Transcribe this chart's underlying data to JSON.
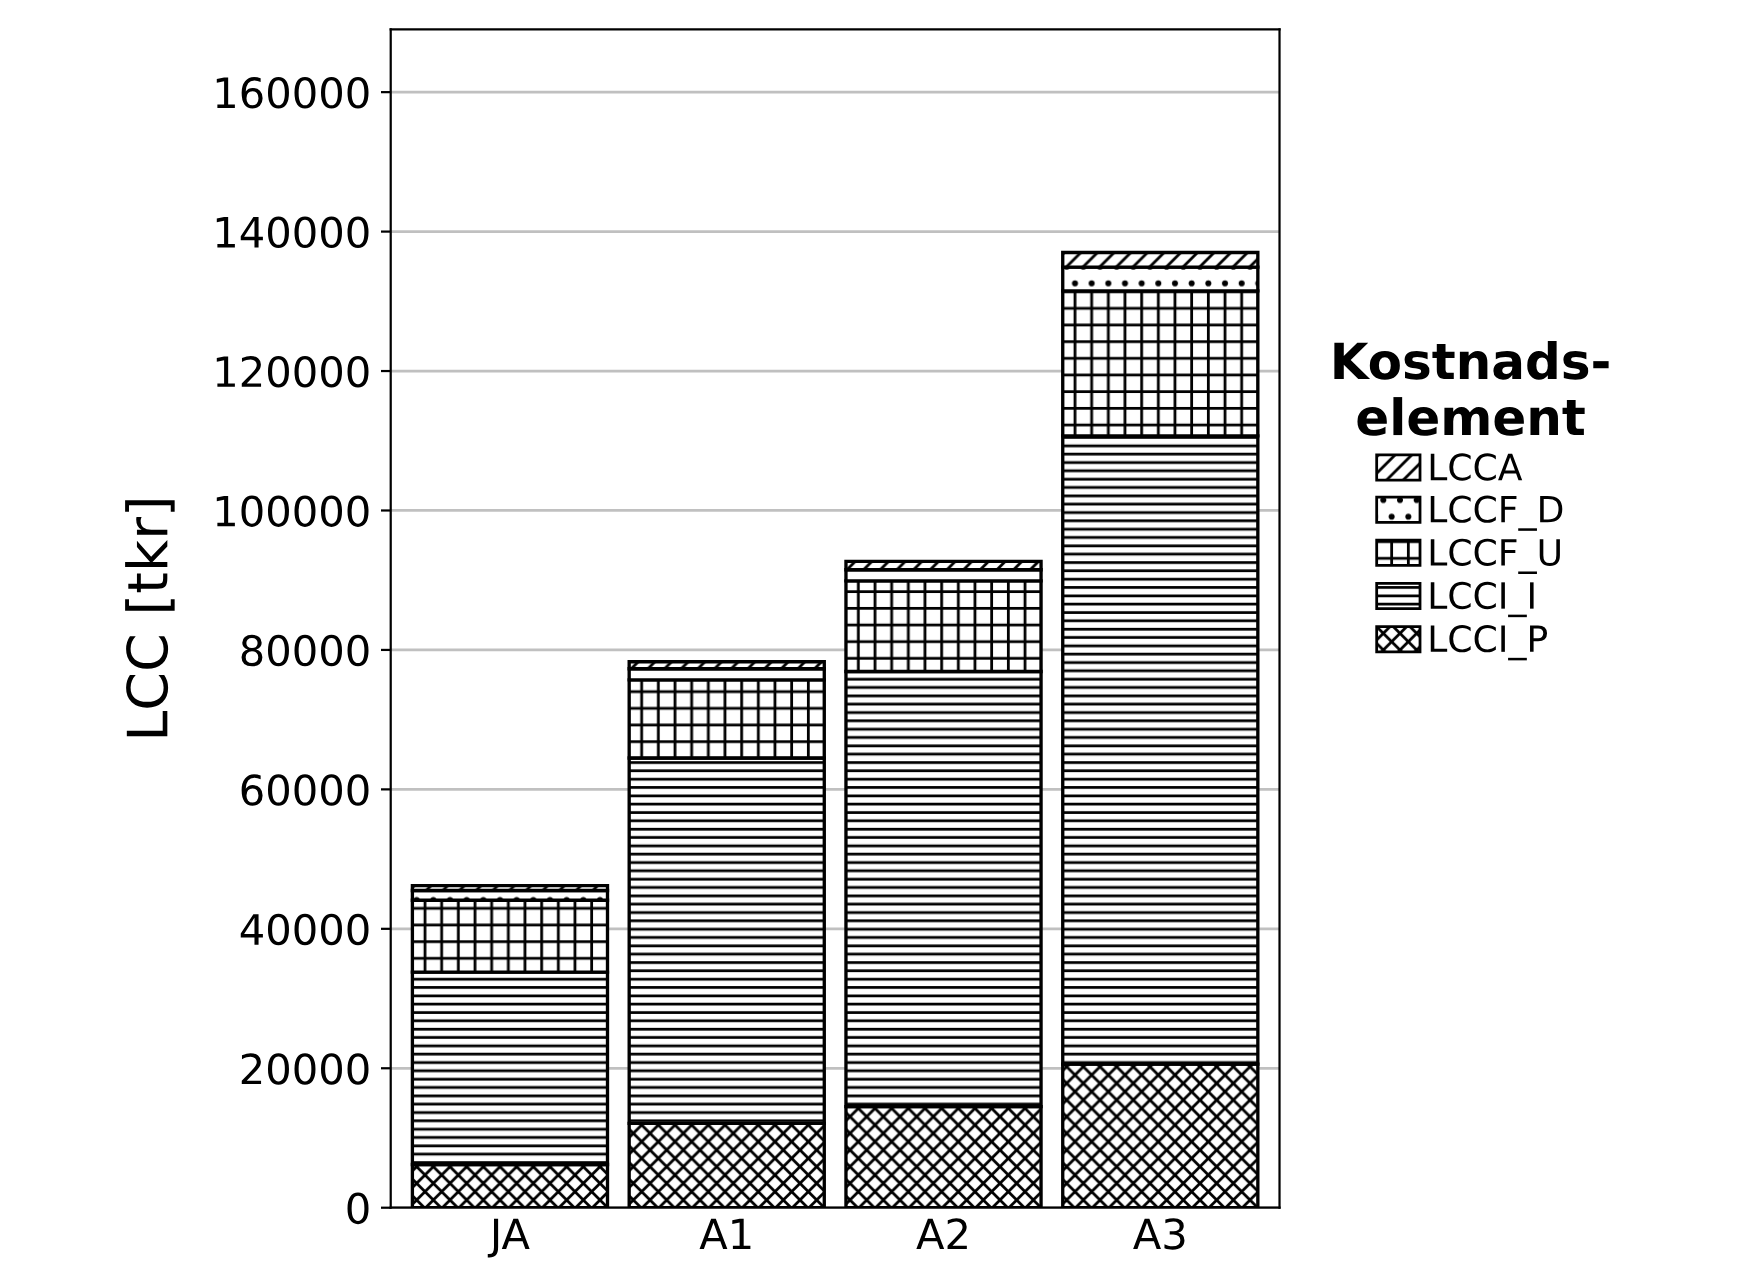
{
  "chart_data": {
    "type": "bar",
    "stacked": true,
    "ylabel": "LCC [tkr]",
    "legend_title": "Kostnads-\nelement",
    "categories": [
      "JA",
      "A1",
      "A2",
      "A3"
    ],
    "series": [
      {
        "name": "LCCI_P",
        "color": "#000000",
        "values": [
          6200,
          12100,
          14500,
          20600
        ]
      },
      {
        "name": "LCCI_I",
        "color": "#000000",
        "values": [
          27600,
          52400,
          62400,
          90100
        ]
      },
      {
        "name": "LCCF_U",
        "color": "#000000",
        "values": [
          10300,
          11200,
          13000,
          20800
        ]
      },
      {
        "name": "LCCF_D",
        "color": "#000000",
        "values": [
          1400,
          1600,
          1600,
          3400
        ]
      },
      {
        "name": "LCCA",
        "color": "#000000",
        "values": [
          700,
          1000,
          1200,
          2100
        ]
      }
    ],
    "ylim": [
      0,
      169000
    ],
    "yticks": [
      0,
      20000,
      40000,
      60000,
      80000,
      100000,
      120000,
      140000,
      160000
    ],
    "grid": "y",
    "legend": "right"
  }
}
